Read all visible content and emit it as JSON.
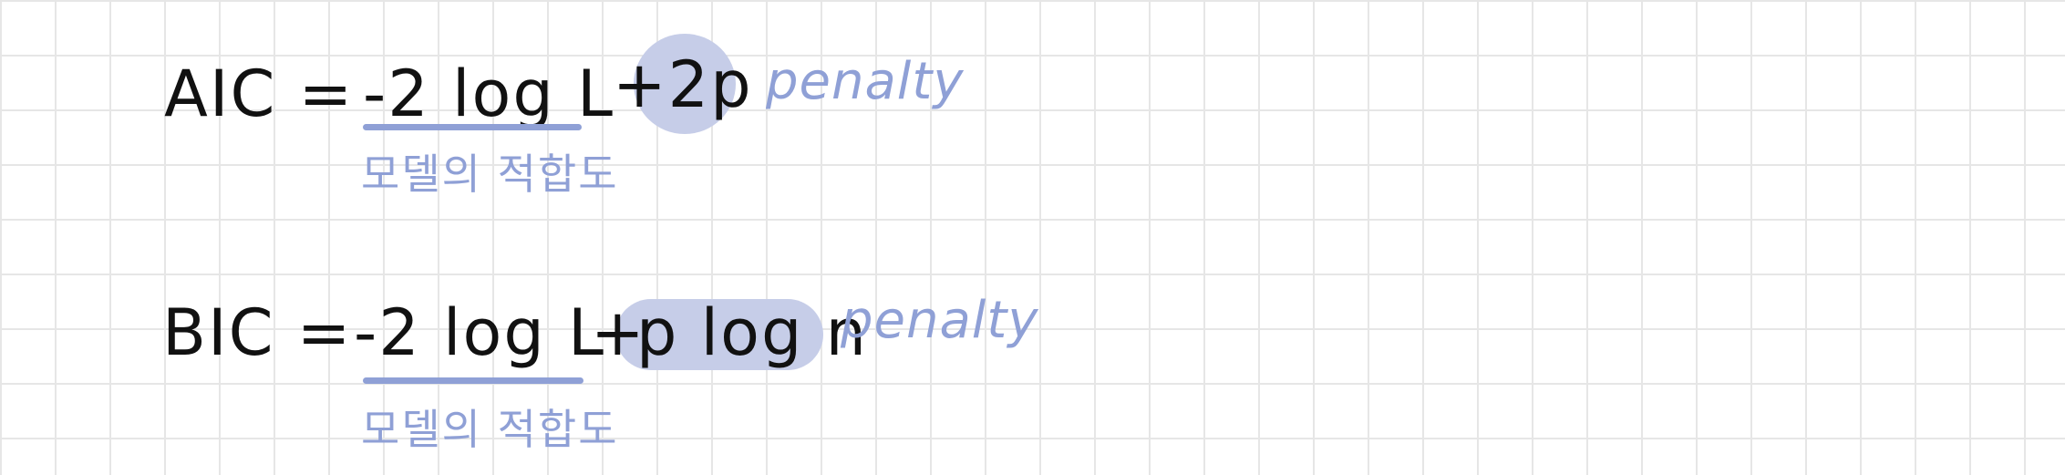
{
  "colors": {
    "ink": "#111111",
    "annotation": "#8fa0d6",
    "highlight": "#c6cde8",
    "grid": "#e6e6e6"
  },
  "aic": {
    "lhs": "AIC =",
    "fit_term": "-2 log L",
    "penalty_term": "+2p",
    "penalty_label": "penalty",
    "fit_label": "모델의 적합도"
  },
  "bic": {
    "lhs": "BIC =",
    "fit_term": "-2 log L",
    "plus": "+",
    "penalty_term": "p log n",
    "penalty_label": "penalty",
    "fit_label": "모델의 적합도"
  }
}
